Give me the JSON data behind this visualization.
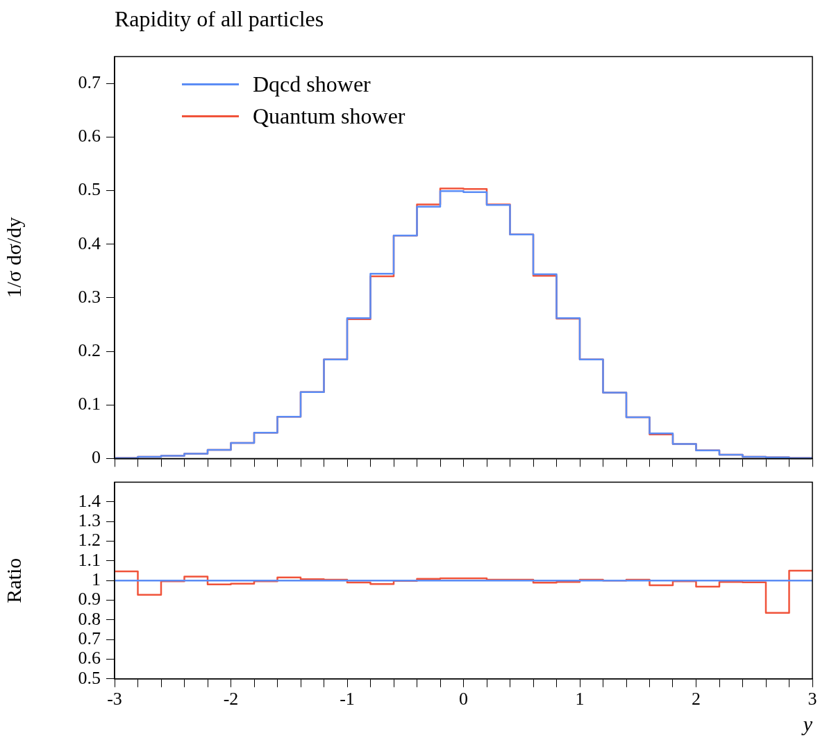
{
  "chart_data": [
    {
      "type": "histogram",
      "title": "Rapidity of all particles",
      "ylabel": "1/σ dσ/dy",
      "bins": [
        -3,
        -2.8,
        -2.6,
        -2.4,
        -2.2,
        -2,
        -1.8,
        -1.6,
        -1.4,
        -1.2,
        -1,
        -0.8,
        -0.6,
        -0.4,
        -0.2,
        0,
        0.2,
        0.4,
        0.6,
        0.8,
        1,
        1.2,
        1.4,
        1.6,
        1.8,
        2,
        2.2,
        2.4,
        2.6,
        2.8,
        3
      ],
      "series": [
        {
          "name": "Dqcd shower",
          "color": "#5b8cf5",
          "values": [
            0.001,
            0.003,
            0.005,
            0.009,
            0.016,
            0.029,
            0.048,
            0.078,
            0.124,
            0.185,
            0.262,
            0.345,
            0.416,
            0.47,
            0.499,
            0.497,
            0.473,
            0.418,
            0.344,
            0.262,
            0.185,
            0.123,
            0.077,
            0.047,
            0.027,
            0.015,
            0.007,
            0.003,
            0.002,
            0.001
          ]
        },
        {
          "name": "Quantum shower",
          "color": "#f0533a",
          "values": [
            0.001,
            0.003,
            0.005,
            0.009,
            0.016,
            0.029,
            0.048,
            0.078,
            0.124,
            0.185,
            0.26,
            0.34,
            0.416,
            0.474,
            0.504,
            0.503,
            0.474,
            0.418,
            0.341,
            0.261,
            0.185,
            0.123,
            0.077,
            0.045,
            0.027,
            0.015,
            0.007,
            0.003,
            0.002,
            0.001
          ]
        }
      ],
      "xlim": [
        -3,
        3
      ],
      "ylim": [
        0,
        0.75
      ],
      "yticks": [
        0,
        0.1,
        0.2,
        0.3,
        0.4,
        0.5,
        0.6,
        0.7
      ],
      "xticks": [
        -3,
        {
          "value": -2.8,
          "label": null
        },
        {
          "value": -2.6,
          "label": null
        },
        {
          "value": -2.4,
          "label": null
        },
        {
          "value": -2.2,
          "label": null
        },
        -2,
        {
          "value": -1.8,
          "label": null
        },
        {
          "value": -1.6,
          "label": null
        },
        {
          "value": -1.4,
          "label": null
        },
        {
          "value": -1.2,
          "label": null
        },
        -1,
        {
          "value": -0.8,
          "label": null
        },
        {
          "value": -0.6,
          "label": null
        },
        {
          "value": -0.4,
          "label": null
        },
        {
          "value": -0.2,
          "label": null
        },
        0,
        {
          "value": 0.2,
          "label": null
        },
        {
          "value": 0.4,
          "label": null
        },
        {
          "value": 0.6,
          "label": null
        },
        {
          "value": 0.8,
          "label": null
        },
        1,
        {
          "value": 1.2,
          "label": null
        },
        {
          "value": 1.4,
          "label": null
        },
        {
          "value": 1.6,
          "label": null
        },
        {
          "value": 1.8,
          "label": null
        },
        2,
        {
          "value": 2.2,
          "label": null
        },
        {
          "value": 2.4,
          "label": null
        },
        {
          "value": 2.6,
          "label": null
        },
        {
          "value": 2.8,
          "label": null
        },
        3
      ],
      "tick_labels": "y",
      "legend": "top left"
    },
    {
      "type": "histogram",
      "xlabel": "y",
      "ylabel": "Ratio",
      "bins": [
        -3,
        -2.8,
        -2.6,
        -2.4,
        -2.2,
        -2,
        -1.8,
        -1.6,
        -1.4,
        -1.2,
        -1,
        -0.8,
        -0.6,
        -0.4,
        -0.2,
        0,
        0.2,
        0.4,
        0.6,
        0.8,
        1,
        1.2,
        1.4,
        1.6,
        1.8,
        2,
        2.2,
        2.4,
        2.6,
        2.8,
        3
      ],
      "series": [
        {
          "color": "#5b8cf5",
          "values": [
            1,
            1,
            1,
            1,
            1,
            1,
            1,
            1,
            1,
            1,
            1,
            1,
            1,
            1,
            1,
            1,
            1,
            1,
            1,
            1,
            1,
            1,
            1,
            1,
            1,
            1,
            1,
            1,
            1,
            1
          ]
        },
        {
          "color": "#f0533a",
          "values": [
            1.047,
            0.927,
            0.996,
            1.02,
            0.98,
            0.984,
            0.996,
            1.016,
            1.007,
            1.004,
            0.99,
            0.982,
            0.998,
            1.009,
            1.011,
            1.011,
            1.004,
            1.004,
            0.989,
            0.993,
            1.004,
            1,
            1.004,
            0.976,
            0.996,
            0.969,
            0.993,
            0.991,
            0.836,
            1.05
          ]
        }
      ],
      "xlim": [
        -3,
        3
      ],
      "ylim": [
        0.5,
        1.5
      ],
      "yticks": [
        0.5,
        0.6,
        0.7,
        0.8,
        0.9,
        1,
        1.1,
        1.2,
        1.3,
        1.4
      ],
      "xticks": [
        -3,
        {
          "value": -2.8,
          "label": null
        },
        {
          "value": -2.6,
          "label": null
        },
        {
          "value": -2.4,
          "label": null
        },
        {
          "value": -2.2,
          "label": null
        },
        -2,
        {
          "value": -1.8,
          "label": null
        },
        {
          "value": -1.6,
          "label": null
        },
        {
          "value": -1.4,
          "label": null
        },
        {
          "value": -1.2,
          "label": null
        },
        -1,
        {
          "value": -0.8,
          "label": null
        },
        {
          "value": -0.6,
          "label": null
        },
        {
          "value": -0.4,
          "label": null
        },
        {
          "value": -0.2,
          "label": null
        },
        0,
        {
          "value": 0.2,
          "label": null
        },
        {
          "value": 0.4,
          "label": null
        },
        {
          "value": 0.6,
          "label": null
        },
        {
          "value": 0.8,
          "label": null
        },
        1,
        {
          "value": 1.2,
          "label": null
        },
        {
          "value": 1.4,
          "label": null
        },
        {
          "value": 1.6,
          "label": null
        },
        {
          "value": 1.8,
          "label": null
        },
        2,
        {
          "value": 2.2,
          "label": null
        },
        {
          "value": 2.4,
          "label": null
        },
        {
          "value": 2.6,
          "label": null
        },
        {
          "value": 2.8,
          "label": null
        },
        3
      ]
    }
  ]
}
